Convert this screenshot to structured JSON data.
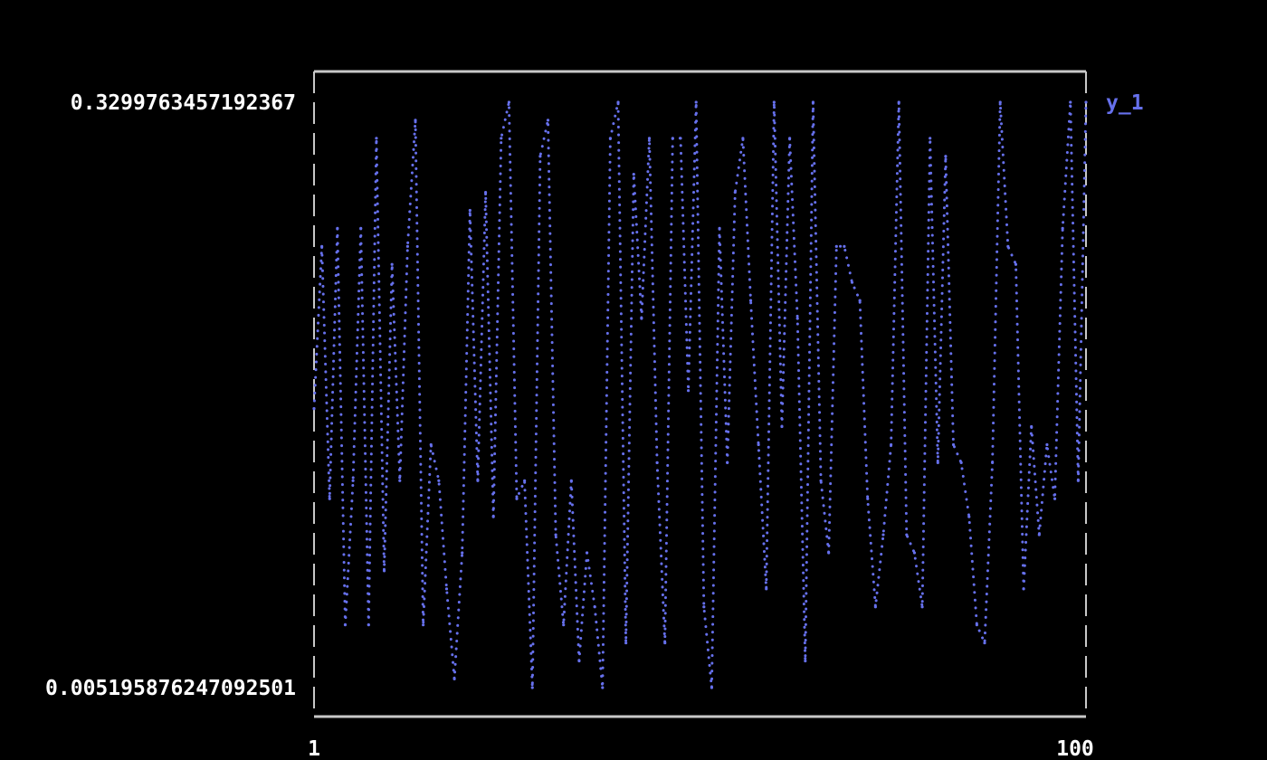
{
  "chart_data": {
    "type": "line",
    "title": "",
    "xlabel": "",
    "ylabel": "",
    "xlim": [
      1,
      100
    ],
    "ylim": [
      0.005195876247092501,
      0.3299763457192367
    ],
    "x_tick_labels": [
      "1",
      "100"
    ],
    "y_tick_labels": [
      "0.3299763457192367",
      "0.005195876247092501"
    ],
    "grid": false,
    "legend_placement": "top-right",
    "colors": {
      "series": "#6670ec",
      "frame": "#c8c8c8",
      "text": "#ffffff",
      "background": "#000000"
    },
    "series": [
      {
        "name": "y_1",
        "x": [
          1,
          2,
          3,
          4,
          5,
          6,
          7,
          8,
          9,
          10,
          11,
          12,
          13,
          14,
          15,
          16,
          17,
          18,
          19,
          20,
          21,
          22,
          23,
          24,
          25,
          26,
          27,
          28,
          29,
          30,
          31,
          32,
          33,
          34,
          35,
          36,
          37,
          38,
          39,
          40,
          41,
          42,
          43,
          44,
          45,
          46,
          47,
          48,
          49,
          50,
          51,
          52,
          53,
          54,
          55,
          56,
          57,
          58,
          59,
          60,
          61,
          62,
          63,
          64,
          65,
          66,
          67,
          68,
          69,
          70,
          71,
          72,
          73,
          74,
          75,
          76,
          77,
          78,
          79,
          80,
          81,
          82,
          83,
          84,
          85,
          86,
          87,
          88,
          89,
          90,
          91,
          92,
          93,
          94,
          95,
          96,
          97,
          98,
          99,
          100
        ],
        "values": [
          0.16,
          0.25,
          0.11,
          0.26,
          0.04,
          0.12,
          0.26,
          0.04,
          0.31,
          0.07,
          0.24,
          0.12,
          0.25,
          0.32,
          0.04,
          0.14,
          0.12,
          0.06,
          0.01,
          0.08,
          0.27,
          0.12,
          0.28,
          0.1,
          0.31,
          0.33,
          0.11,
          0.12,
          0.0052,
          0.3,
          0.32,
          0.09,
          0.04,
          0.12,
          0.02,
          0.08,
          0.05,
          0.0052,
          0.31,
          0.33,
          0.03,
          0.29,
          0.21,
          0.31,
          0.13,
          0.03,
          0.31,
          0.31,
          0.17,
          0.33,
          0.05,
          0.0052,
          0.26,
          0.13,
          0.28,
          0.31,
          0.22,
          0.14,
          0.06,
          0.33,
          0.15,
          0.31,
          0.21,
          0.02,
          0.33,
          0.12,
          0.08,
          0.25,
          0.25,
          0.23,
          0.22,
          0.11,
          0.05,
          0.09,
          0.14,
          0.33,
          0.09,
          0.08,
          0.05,
          0.31,
          0.13,
          0.3,
          0.14,
          0.13,
          0.1,
          0.04,
          0.03,
          0.13,
          0.33,
          0.25,
          0.24,
          0.06,
          0.15,
          0.09,
          0.14,
          0.11,
          0.26,
          0.33,
          0.12,
          0.33
        ]
      }
    ]
  }
}
